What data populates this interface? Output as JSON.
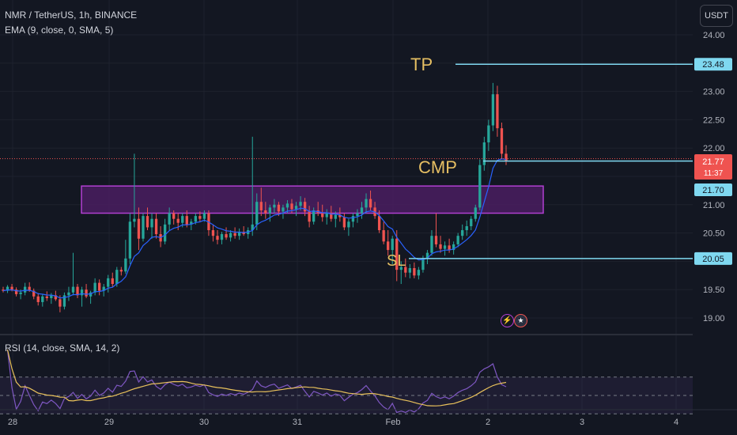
{
  "header": {
    "symbol_line": "NMR / TetherUS, 1h, BINANCE",
    "indicator_line": "EMA (9, close, 0, SMA, 5)",
    "currency_button": "USDT"
  },
  "annotations": {
    "tp_label": "TP",
    "cmp_label": "CMP",
    "sl_label": "SL",
    "tp_price": 23.48,
    "cmp_price": 21.77,
    "sl_price": 20.05
  },
  "price_tags": {
    "tp": "23.48",
    "current": "21.77",
    "countdown": "11:37",
    "zone": "21.70",
    "sl": "20.05"
  },
  "rsi_legend": "RSI (14, close, SMA, 14, 2)",
  "colors": {
    "background": "#131722",
    "up": "#26a69a",
    "down": "#ef5350",
    "ema": "#2962ff",
    "level_line": "#7fd8f0",
    "label_gold": "#e6bf63",
    "zone_border": "#b13fd1",
    "zone_fill": "#4a1d60",
    "rsi_line": "#7e57c2",
    "rsi_ma": "#e8c15b"
  },
  "chart_data": {
    "type": "candlestick",
    "symbol": "NMR / TetherUS",
    "interval": "1h",
    "exchange": "BINANCE",
    "y_ticks": [
      24.0,
      23.5,
      23.0,
      22.5,
      22.0,
      21.5,
      21.0,
      20.5,
      20.0,
      19.5,
      19.0
    ],
    "x_ticks": [
      "28",
      "29",
      "30",
      "31",
      "Feb",
      "2",
      "3",
      "4"
    ],
    "zone": {
      "from_price": 20.85,
      "to_price": 21.33
    },
    "candles": [
      [
        19.5,
        19.55,
        19.45,
        19.48
      ],
      [
        19.48,
        19.58,
        19.44,
        19.55
      ],
      [
        19.55,
        19.6,
        19.47,
        19.5
      ],
      [
        19.5,
        19.54,
        19.38,
        19.42
      ],
      [
        19.42,
        19.5,
        19.33,
        19.45
      ],
      [
        19.45,
        19.62,
        19.4,
        19.55
      ],
      [
        19.55,
        19.63,
        19.46,
        19.48
      ],
      [
        19.48,
        19.52,
        19.33,
        19.38
      ],
      [
        19.38,
        19.44,
        19.22,
        19.28
      ],
      [
        19.28,
        19.42,
        19.2,
        19.38
      ],
      [
        19.38,
        19.47,
        19.3,
        19.35
      ],
      [
        19.35,
        19.44,
        19.25,
        19.4
      ],
      [
        19.4,
        19.48,
        19.3,
        19.33
      ],
      [
        19.33,
        19.4,
        19.1,
        19.2
      ],
      [
        19.2,
        19.45,
        19.15,
        19.4
      ],
      [
        19.4,
        19.55,
        19.3,
        19.45
      ],
      [
        19.45,
        20.15,
        19.4,
        19.55
      ],
      [
        19.55,
        19.6,
        19.35,
        19.4
      ],
      [
        19.4,
        19.55,
        19.2,
        19.5
      ],
      [
        19.5,
        19.6,
        19.35,
        19.38
      ],
      [
        19.38,
        19.48,
        19.25,
        19.45
      ],
      [
        19.45,
        19.7,
        19.4,
        19.62
      ],
      [
        19.62,
        19.68,
        19.4,
        19.48
      ],
      [
        19.48,
        19.6,
        19.38,
        19.55
      ],
      [
        19.55,
        19.76,
        19.45,
        19.7
      ],
      [
        19.7,
        19.8,
        19.55,
        19.6
      ],
      [
        19.6,
        19.9,
        19.55,
        19.85
      ],
      [
        19.85,
        19.9,
        19.75,
        19.82
      ],
      [
        19.82,
        20.38,
        19.78,
        20.05
      ],
      [
        20.05,
        20.85,
        19.95,
        20.7
      ],
      [
        20.7,
        21.9,
        20.6,
        20.75
      ],
      [
        20.75,
        20.95,
        20.2,
        20.4
      ],
      [
        20.4,
        20.85,
        20.35,
        20.8
      ],
      [
        20.8,
        20.95,
        20.55,
        20.6
      ],
      [
        20.6,
        20.85,
        20.4,
        20.75
      ],
      [
        20.75,
        20.85,
        20.4,
        20.48
      ],
      [
        20.48,
        20.62,
        20.25,
        20.35
      ],
      [
        20.35,
        20.75,
        20.3,
        20.65
      ],
      [
        20.65,
        20.95,
        20.55,
        20.85
      ],
      [
        20.85,
        20.9,
        20.65,
        20.75
      ],
      [
        20.75,
        20.85,
        20.55,
        20.68
      ],
      [
        20.68,
        20.85,
        20.6,
        20.8
      ],
      [
        20.8,
        20.9,
        20.6,
        20.65
      ],
      [
        20.65,
        20.75,
        20.55,
        20.7
      ],
      [
        20.7,
        20.85,
        20.65,
        20.8
      ],
      [
        20.8,
        20.88,
        20.7,
        20.75
      ],
      [
        20.75,
        20.9,
        20.7,
        20.85
      ],
      [
        20.85,
        20.9,
        20.45,
        20.55
      ],
      [
        20.55,
        20.65,
        20.35,
        20.45
      ],
      [
        20.45,
        20.55,
        20.3,
        20.38
      ],
      [
        20.38,
        20.52,
        20.3,
        20.48
      ],
      [
        20.48,
        20.6,
        20.38,
        20.42
      ],
      [
        20.42,
        20.55,
        20.35,
        20.5
      ],
      [
        20.5,
        20.6,
        20.4,
        20.45
      ],
      [
        20.45,
        20.58,
        20.38,
        20.52
      ],
      [
        20.52,
        20.62,
        20.45,
        20.48
      ],
      [
        20.48,
        20.6,
        20.4,
        20.55
      ],
      [
        20.55,
        22.2,
        20.45,
        20.65
      ],
      [
        20.65,
        21.2,
        20.55,
        21.05
      ],
      [
        21.05,
        21.3,
        20.8,
        20.9
      ],
      [
        20.9,
        21.05,
        20.75,
        20.85
      ],
      [
        20.85,
        21.0,
        20.7,
        20.95
      ],
      [
        20.95,
        21.1,
        20.85,
        21.0
      ],
      [
        21.0,
        21.05,
        20.8,
        20.88
      ],
      [
        20.88,
        21.0,
        20.75,
        20.95
      ],
      [
        20.95,
        21.08,
        20.85,
        21.02
      ],
      [
        21.02,
        21.1,
        20.85,
        20.92
      ],
      [
        20.92,
        21.05,
        20.8,
        20.98
      ],
      [
        20.98,
        21.15,
        20.9,
        21.05
      ],
      [
        21.05,
        21.12,
        20.8,
        20.88
      ],
      [
        20.88,
        20.98,
        20.6,
        20.7
      ],
      [
        20.7,
        20.95,
        20.65,
        20.9
      ],
      [
        20.9,
        21.05,
        20.8,
        20.85
      ],
      [
        20.85,
        21.0,
        20.7,
        20.78
      ],
      [
        20.78,
        20.92,
        20.65,
        20.85
      ],
      [
        20.85,
        20.98,
        20.7,
        20.75
      ],
      [
        20.75,
        20.88,
        20.6,
        20.82
      ],
      [
        20.82,
        20.95,
        20.7,
        20.78
      ],
      [
        20.78,
        20.85,
        20.55,
        20.6
      ],
      [
        20.6,
        20.75,
        20.45,
        20.7
      ],
      [
        20.7,
        20.85,
        20.6,
        20.8
      ],
      [
        20.8,
        20.92,
        20.68,
        20.85
      ],
      [
        20.85,
        21.05,
        20.75,
        20.95
      ],
      [
        20.95,
        21.2,
        20.85,
        21.1
      ],
      [
        21.1,
        21.25,
        20.9,
        20.95
      ],
      [
        20.95,
        21.05,
        20.75,
        20.8
      ],
      [
        20.8,
        20.9,
        20.5,
        20.55
      ],
      [
        20.55,
        20.7,
        20.3,
        20.35
      ],
      [
        20.35,
        20.55,
        20.1,
        20.2
      ],
      [
        20.2,
        20.45,
        19.95,
        20.4
      ],
      [
        20.4,
        20.55,
        19.65,
        19.85
      ],
      [
        19.85,
        20.0,
        19.6,
        19.9
      ],
      [
        19.9,
        20.05,
        19.72,
        19.8
      ],
      [
        19.8,
        19.95,
        19.7,
        19.88
      ],
      [
        19.88,
        19.98,
        19.7,
        19.75
      ],
      [
        19.75,
        19.9,
        19.68,
        19.85
      ],
      [
        19.85,
        20.1,
        19.8,
        20.05
      ],
      [
        20.05,
        20.2,
        19.95,
        20.15
      ],
      [
        20.15,
        20.55,
        20.1,
        20.45
      ],
      [
        20.45,
        20.85,
        20.25,
        20.3
      ],
      [
        20.3,
        20.45,
        20.15,
        20.22
      ],
      [
        20.22,
        20.35,
        20.1,
        20.28
      ],
      [
        20.28,
        20.4,
        20.15,
        20.2
      ],
      [
        20.2,
        20.35,
        20.12,
        20.3
      ],
      [
        20.3,
        20.5,
        20.25,
        20.45
      ],
      [
        20.45,
        20.65,
        20.38,
        20.55
      ],
      [
        20.55,
        20.72,
        20.45,
        20.62
      ],
      [
        20.62,
        20.8,
        20.55,
        20.75
      ],
      [
        20.75,
        21.0,
        20.7,
        20.95
      ],
      [
        20.95,
        21.8,
        20.9,
        21.7
      ],
      [
        21.7,
        22.2,
        21.6,
        22.1
      ],
      [
        22.1,
        22.5,
        21.95,
        22.4
      ],
      [
        22.4,
        23.15,
        22.3,
        22.95
      ],
      [
        22.95,
        23.1,
        22.2,
        22.35
      ],
      [
        22.35,
        22.45,
        21.8,
        21.9
      ],
      [
        21.9,
        22.05,
        21.7,
        21.77
      ]
    ]
  }
}
